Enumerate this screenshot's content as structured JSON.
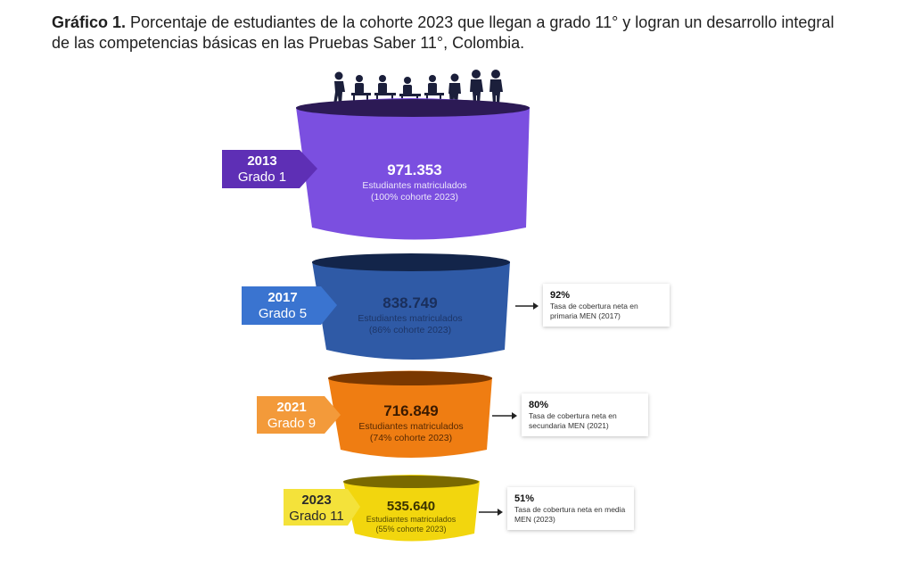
{
  "title": {
    "bold": "Gráfico 1.",
    "text": " Porcentaje de estudiantes de la cohorte 2023 que llegan a grado 11° y logran un desarrollo integral de las competencias básicas en las Pruebas Saber 11°, Colombia."
  },
  "people_icon": "students-icon",
  "colors": {
    "stage1": "#7b4fe0",
    "stage2": "#2f5aa6",
    "stage3": "#ef7d12",
    "stage4": "#f2d60e"
  },
  "stages": [
    {
      "year": "2013",
      "grade": "Grado 1",
      "value": "971.353",
      "label": "Estudiantes matriculados",
      "cohort": "(100% cohorte 2023)"
    },
    {
      "year": "2017",
      "grade": "Grado 5",
      "value": "838.749",
      "label": "Estudiantes matriculados",
      "cohort": "(86% cohorte 2023)",
      "note_pct": "92%",
      "note_text": "Tasa de cobertura neta en primaria MEN (2017)"
    },
    {
      "year": "2021",
      "grade": "Grado 9",
      "value": "716.849",
      "label": "Estudiantes matriculados",
      "cohort": "(74% cohorte 2023)",
      "note_pct": "80%",
      "note_text": "Tasa de cobertura neta en secundaria MEN (2021)"
    },
    {
      "year": "2023",
      "grade": "Grado 11",
      "value": "535.640",
      "label": "Estudiantes matriculados",
      "cohort": "(55% cohorte 2023)",
      "note_pct": "51%",
      "note_text": "Tasa de cobertura neta en media MEN (2023)"
    }
  ]
}
